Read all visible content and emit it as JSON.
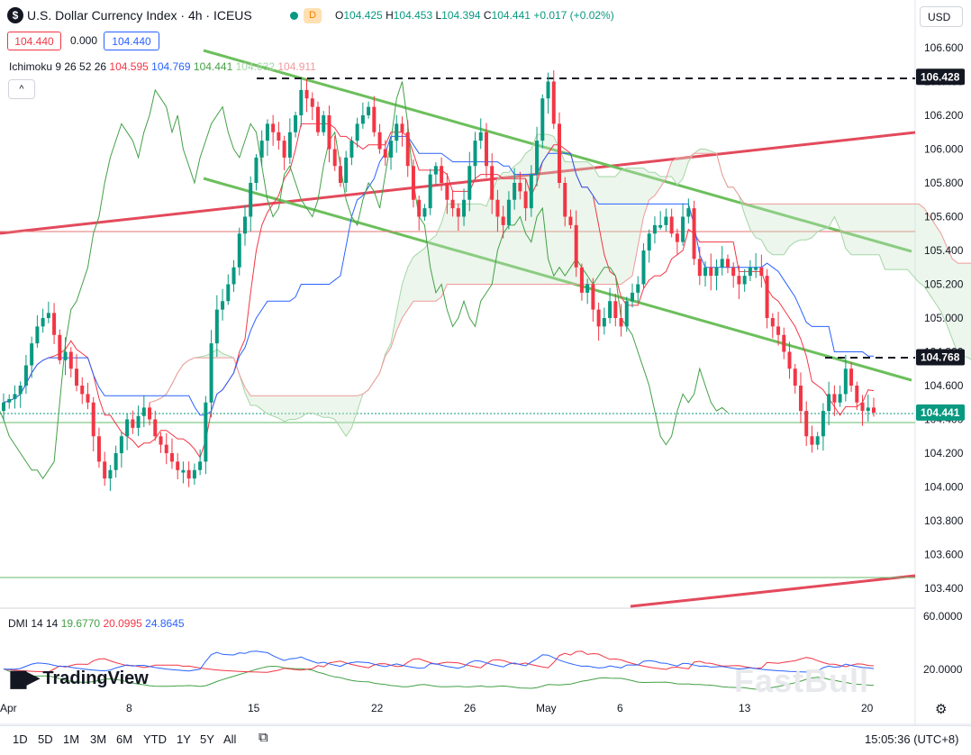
{
  "header": {
    "logo_letter": "$",
    "title": "U.S. Dollar Currency Index · 4h · ICEUS",
    "badge": "D",
    "o_label": "O",
    "o": "104.425",
    "h_label": "H",
    "h": "104.453",
    "l_label": "L",
    "l": "104.394",
    "c_label": "C",
    "c": "104.441",
    "change": "+0.017 (+0.02%)",
    "bid": "104.440",
    "spread": "0.000",
    "ask": "104.440",
    "currency": "USD",
    "collapse": "^"
  },
  "ichimoku": {
    "label": "Ichimoku 9 26 52 26",
    "v1": "104.595",
    "v2": "104.769",
    "v3": "104.441",
    "v4": "104.632",
    "v5": "104.911",
    "colors": [
      "#f23645",
      "#2962ff",
      "#43a047",
      "#a5d6a7",
      "#ef9a9a"
    ]
  },
  "dmi": {
    "label": "DMI 14 14",
    "v1": "19.6770",
    "v2": "20.0995",
    "v3": "24.8645",
    "colors": [
      "#43a047",
      "#f23645",
      "#2962ff"
    ],
    "axis": [
      "60.0000",
      "20.0000"
    ]
  },
  "brand": {
    "tradingview": "TradingView",
    "watermark": "FastBull"
  },
  "toolbar": {
    "timeframes": [
      "1D",
      "5D",
      "1M",
      "3M",
      "6M",
      "YTD",
      "1Y",
      "5Y",
      "All"
    ],
    "clock": "15:05:36 (UTC+8)",
    "compare_icon": "calendar-range-icon",
    "settings_icon": "gear-icon"
  },
  "chart_data": {
    "type": "candlestick",
    "y_ticks": [
      103.4,
      103.6,
      103.8,
      104.0,
      104.2,
      104.4,
      104.6,
      104.8,
      105.0,
      105.2,
      105.4,
      105.6,
      105.8,
      106.0,
      106.2,
      106.4,
      106.6
    ],
    "y_tick_labels": [
      "103.400",
      "103.600",
      "103.800",
      "104.000",
      "104.200",
      "104.400",
      "104.600",
      "104.800",
      "105.000",
      "105.200",
      "105.400",
      "105.600",
      "105.800",
      "106.000",
      "106.200",
      "106.400",
      "106.600"
    ],
    "x_ticks": [
      "Apr",
      "8",
      "15",
      "22",
      "26",
      "May",
      "6",
      "13",
      "20"
    ],
    "price_tags": [
      {
        "label": "106.428",
        "value": 106.428,
        "style": "dark"
      },
      {
        "label": "104.768",
        "value": 104.768,
        "style": "dark"
      },
      {
        "label": "104.441",
        "value": 104.441,
        "style": "green"
      }
    ],
    "closes": [
      104.5,
      104.52,
      104.55,
      104.6,
      104.72,
      104.85,
      104.95,
      105.0,
      105.03,
      104.9,
      104.75,
      104.8,
      104.7,
      104.6,
      104.55,
      104.5,
      104.3,
      104.15,
      104.05,
      104.1,
      104.2,
      104.3,
      104.4,
      104.35,
      104.42,
      104.47,
      104.4,
      104.3,
      104.25,
      104.2,
      104.15,
      104.1,
      104.1,
      104.05,
      104.1,
      104.15,
      104.5,
      104.85,
      105.05,
      105.1,
      105.2,
      105.3,
      105.5,
      105.6,
      105.8,
      105.95,
      106.05,
      106.15,
      106.1,
      106.05,
      105.95,
      106.1,
      106.2,
      106.35,
      106.3,
      106.25,
      106.1,
      106.2,
      106.0,
      105.9,
      105.8,
      105.95,
      106.05,
      106.15,
      106.2,
      106.25,
      106.1,
      106.0,
      105.95,
      106.05,
      106.15,
      106.1,
      105.9,
      105.7,
      105.6,
      105.65,
      105.85,
      105.9,
      105.8,
      105.7,
      105.65,
      105.6,
      105.7,
      105.9,
      106.05,
      106.1,
      105.9,
      105.7,
      105.6,
      105.55,
      105.7,
      105.8,
      105.75,
      105.65,
      105.85,
      106.05,
      106.3,
      106.4,
      106.15,
      105.8,
      105.6,
      105.55,
      105.3,
      105.15,
      105.2,
      105.05,
      104.95,
      105.0,
      105.1,
      105.0,
      104.95,
      105.1,
      105.15,
      105.2,
      105.4,
      105.5,
      105.55,
      105.55,
      105.6,
      105.5,
      105.45,
      105.6,
      105.65,
      105.35,
      105.25,
      105.3,
      105.25,
      105.3,
      105.35,
      105.3,
      105.25,
      105.2,
      105.25,
      105.3,
      105.3,
      105.25,
      105.0,
      104.95,
      104.9,
      104.8,
      104.7,
      104.6,
      104.45,
      104.3,
      104.25,
      104.3,
      104.45,
      104.55,
      104.5,
      104.55,
      104.7,
      104.6,
      104.5,
      104.45,
      104.47,
      104.44
    ]
  }
}
